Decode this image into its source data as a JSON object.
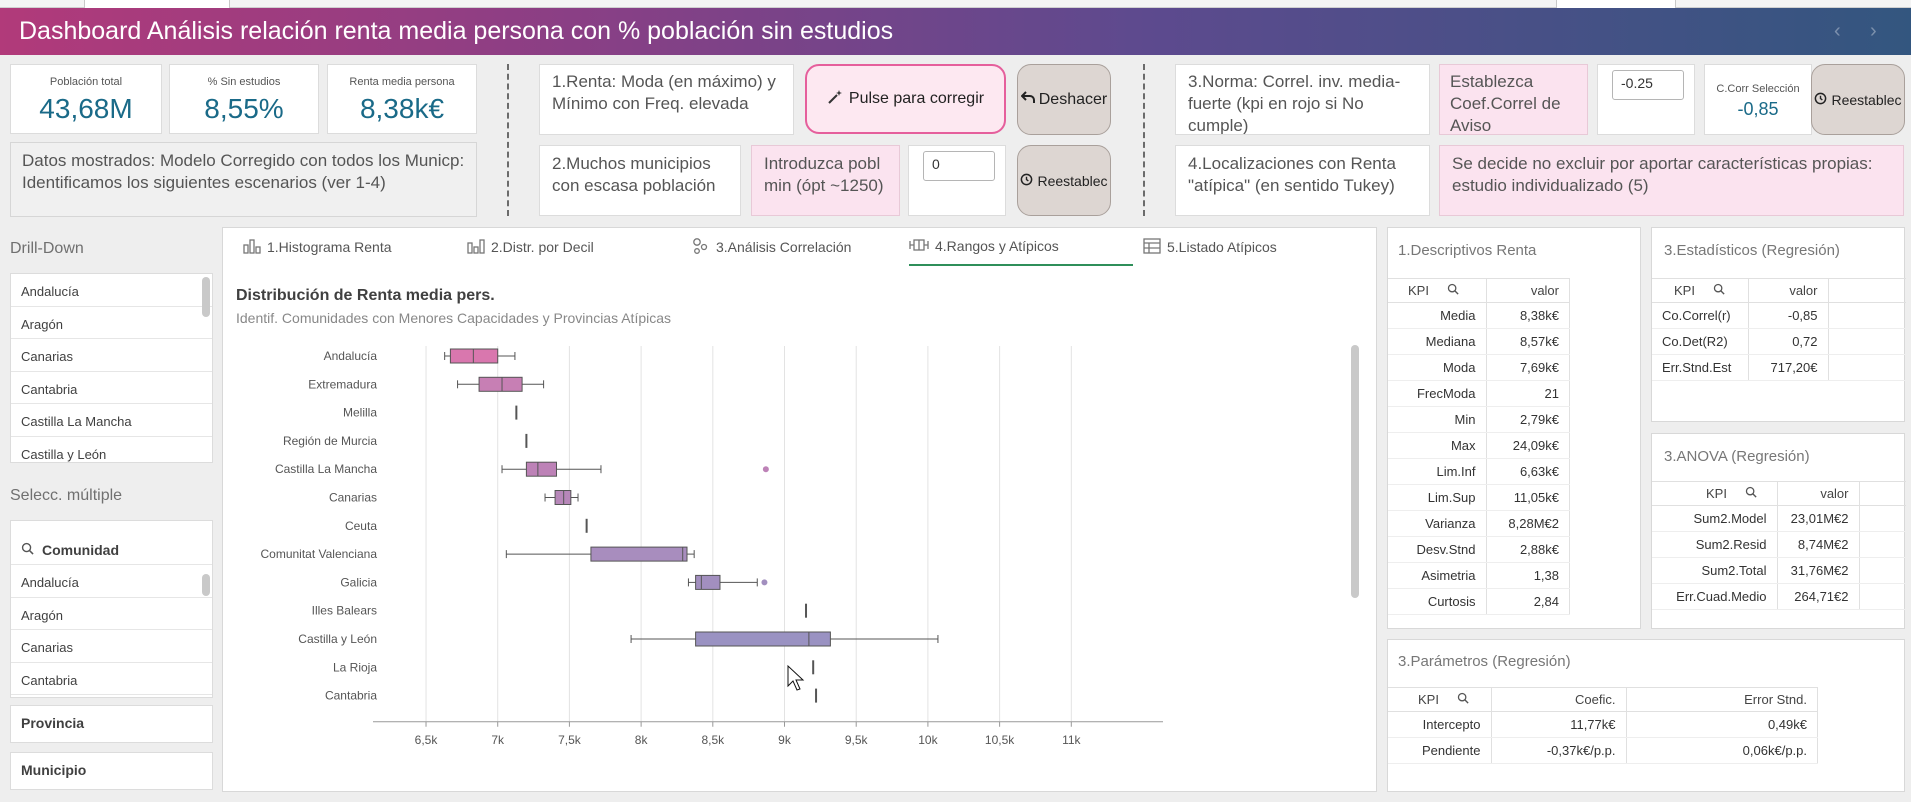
{
  "header": {
    "title": "Dashboard Análisis relación renta media persona con % población sin estudios"
  },
  "kpis": [
    {
      "label": "Población total",
      "value": "43,68M"
    },
    {
      "label": "% Sin estudios",
      "value": "8,55%"
    },
    {
      "label": "Renta media persona",
      "value": "8,38k€"
    }
  ],
  "info_text": "Datos mostrados: Modelo Corregido con  todos los Municp: Identificamos los siguientes escenarios (ver 1-4)",
  "scenarios": {
    "s1": "1.Renta: Moda (en máximo) y Mínimo con Freq. elevada",
    "s2": "2.Muchos municipios con escasa población",
    "s3": "3.Norma: Correl. inv. media-fuerte (kpi en rojo si No cumple)",
    "s4": "4.Localizaciones con Renta \"atípica\" (en sentido Tukey)",
    "pob_min_label": "Introduzca pobl min (ópt ~1250)",
    "pob_min_value": "0",
    "coef_label": "Establezca Coef.Correl de Aviso",
    "coef_value": "-0.25",
    "corr_sel_label": "C.Corr Selección",
    "corr_sel_value": "-0,85",
    "decision_text": "Se decide no excluir por aportar características propias: estudio individualizado (5)"
  },
  "buttons": {
    "correct": "Pulse para corregir",
    "undo": "Deshacer",
    "reset1": "Reestablec",
    "reset2": "Reestablec"
  },
  "sidebar": {
    "drill_title": "Drill-Down",
    "drill_items": [
      "Andalucía",
      "Aragón",
      "Canarias",
      "Cantabria",
      "Castilla La Mancha",
      "Castilla y León"
    ],
    "multi_title": "Selecc. múltiple",
    "comunidad_label": "Comunidad",
    "comunidad_items": [
      "Andalucía",
      "Aragón",
      "Canarias",
      "Cantabria"
    ],
    "provincia_label": "Provincia",
    "municipio_label": "Municipio"
  },
  "tabs": [
    {
      "label": "1.Histograma Renta",
      "icon": "histogram-icon"
    },
    {
      "label": "2.Distr. por Decil",
      "icon": "bar-chart-icon"
    },
    {
      "label": "3.Análisis Correlación",
      "icon": "scatter-icon"
    },
    {
      "label": "4.Rangos y Atípicos",
      "icon": "boxplot-icon"
    },
    {
      "label": "5.Listado Atípicos",
      "icon": "table-icon"
    }
  ],
  "chart_data": {
    "type": "boxplot",
    "title": "Distribución de Renta media pers.",
    "subtitle": "Identif. Comunidades con Menores Capacidades y Provincias Atípicas",
    "xlabel": "Renta media persona",
    "xlim": [
      6200,
      11500
    ],
    "x_ticks": [
      6500,
      7000,
      7500,
      8000,
      8500,
      9000,
      9500,
      10000,
      10500,
      11000
    ],
    "x_tick_labels": [
      "6,5k",
      "7k",
      "7,5k",
      "8k",
      "8,5k",
      "9k",
      "9,5k",
      "10k",
      "10,5k",
      "11k"
    ],
    "grid": true,
    "categories": [
      "Andalucía",
      "Extremadura",
      "Melilla",
      "Región de Murcia",
      "Castilla La Mancha",
      "Canarias",
      "Ceuta",
      "Comunitat Valenciana",
      "Galicia",
      "Illes Balears",
      "Castilla y León",
      "La Rioja",
      "Cantabria"
    ],
    "boxes": [
      {
        "min": 6630,
        "q1": 6670,
        "median": 6830,
        "q3": 7000,
        "max": 7120,
        "outliers": [],
        "color": "#d977ae"
      },
      {
        "min": 6720,
        "q1": 6870,
        "median": 7030,
        "q3": 7170,
        "max": 7320,
        "outliers": [],
        "color": "#c77fb4"
      },
      {
        "min": 7130,
        "q1": 7130,
        "median": 7130,
        "q3": 7130,
        "max": 7130,
        "outliers": [],
        "color": "#b787b9"
      },
      {
        "min": 7200,
        "q1": 7200,
        "median": 7200,
        "q3": 7200,
        "max": 7200,
        "outliers": [],
        "color": "#b787b9"
      },
      {
        "min": 7030,
        "q1": 7200,
        "median": 7280,
        "q3": 7410,
        "max": 7720,
        "outliers": [
          8870
        ],
        "color": "#bd82b7"
      },
      {
        "min": 7330,
        "q1": 7400,
        "median": 7460,
        "q3": 7510,
        "max": 7560,
        "outliers": [],
        "color": "#b787b9"
      },
      {
        "min": 7620,
        "q1": 7620,
        "median": 7620,
        "q3": 7620,
        "max": 7620,
        "outliers": [],
        "color": "#aa8cbd"
      },
      {
        "min": 7060,
        "q1": 7650,
        "median": 8290,
        "q3": 8320,
        "max": 8370,
        "outliers": [],
        "color": "#a88dbe"
      },
      {
        "min": 8330,
        "q1": 8380,
        "median": 8420,
        "q3": 8550,
        "max": 8810,
        "outliers": [
          8860
        ],
        "color": "#a28fbf"
      },
      {
        "min": 9150,
        "q1": 9150,
        "median": 9150,
        "q3": 9150,
        "max": 9150,
        "outliers": [],
        "color": "#9a92c2"
      },
      {
        "min": 7930,
        "q1": 8380,
        "median": 9170,
        "q3": 9320,
        "max": 10070,
        "outliers": [],
        "color": "#9a92c2"
      },
      {
        "min": 9200,
        "q1": 9200,
        "median": 9200,
        "q3": 9200,
        "max": 9200,
        "outliers": [],
        "color": "#9694c3"
      },
      {
        "min": 9220,
        "q1": 9220,
        "median": 9220,
        "q3": 9220,
        "max": 9220,
        "outliers": [],
        "color": "#9694c3"
      }
    ]
  },
  "desc_renta": {
    "title": "1.Descriptivos Renta",
    "col_kpi": "KPI",
    "col_val": "valor",
    "rows": [
      [
        "Media",
        "8,38k€"
      ],
      [
        "Mediana",
        "8,57k€"
      ],
      [
        "Moda",
        "7,69k€"
      ],
      [
        "FrecModa",
        "21"
      ],
      [
        "Min",
        "2,79k€"
      ],
      [
        "Max",
        "24,09k€"
      ],
      [
        "Lim.Inf",
        "6,63k€"
      ],
      [
        "Lim.Sup",
        "11,05k€"
      ],
      [
        "Varianza",
        "8,28M€2"
      ],
      [
        "Desv.Stnd",
        "2,88k€"
      ],
      [
        "Asimetria",
        "1,38"
      ],
      [
        "Curtosis",
        "2,84"
      ]
    ]
  },
  "estad_reg": {
    "title": "3.Estadísticos (Regresión)",
    "col_kpi": "KPI",
    "col_val": "valor",
    "rows": [
      [
        "Co.Correl(r)",
        "-0,85"
      ],
      [
        "Co.Det(R2)",
        "0,72"
      ],
      [
        "Err.Stnd.Est",
        "717,20€"
      ]
    ]
  },
  "anova_reg": {
    "title": "3.ANOVA (Regresión)",
    "col_kpi": "KPI",
    "col_val": "valor",
    "rows": [
      [
        "Sum2.Model",
        "23,01M€2"
      ],
      [
        "Sum2.Resid",
        "8,74M€2"
      ],
      [
        "Sum2.Total",
        "31,76M€2"
      ],
      [
        "Err.Cuad.Medio",
        "264,71€2"
      ]
    ]
  },
  "param_reg": {
    "title": "3.Parámetros (Regresión)",
    "col_kpi": "KPI",
    "col_coef": "Coefic.",
    "col_err": "Error Stnd.",
    "rows": [
      [
        "Intercepto",
        "11,77k€",
        "0,49k€"
      ],
      [
        "Pendiente",
        "-0,37k€/p.p.",
        "0,06k€/p.p."
      ]
    ]
  },
  "colors": {
    "accent": "#1a6a88",
    "pink": "#e55f9c",
    "active_tab": "#2f8f5a"
  }
}
